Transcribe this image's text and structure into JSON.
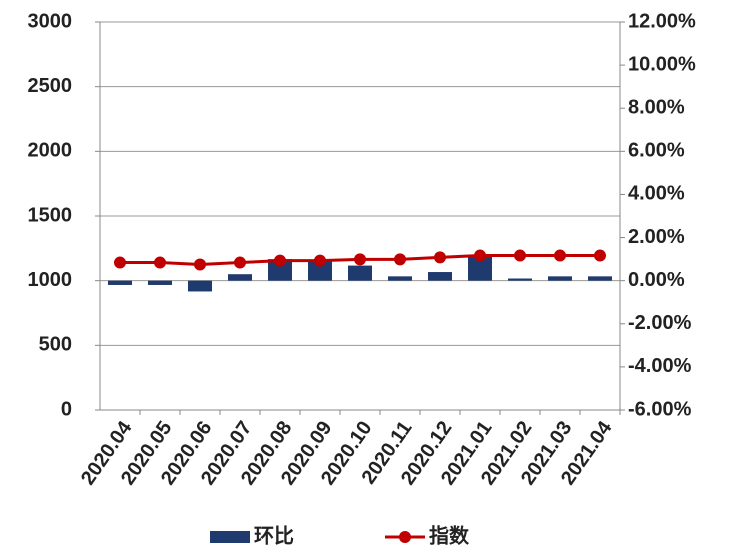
{
  "chart_data": {
    "type": "bar-line",
    "categories": [
      "2020.04",
      "2020.05",
      "2020.06",
      "2020.07",
      "2020.08",
      "2020.09",
      "2020.10",
      "2020.11",
      "2020.12",
      "2021.01",
      "2021.02",
      "2021.03",
      "2021.04"
    ],
    "series": [
      {
        "name": "环比",
        "type": "bar",
        "axis": "y2",
        "color": "#1f3a6e",
        "values": [
          -0.2,
          -0.2,
          -0.5,
          0.3,
          1.0,
          0.9,
          0.7,
          0.2,
          0.4,
          1.1,
          0.1,
          0.2,
          0.2
        ]
      },
      {
        "name": "指数",
        "type": "line",
        "axis": "y",
        "color": "#c00000",
        "values": [
          1140,
          1140,
          1125,
          1140,
          1155,
          1155,
          1165,
          1165,
          1180,
          1195,
          1195,
          1195,
          1195
        ]
      }
    ],
    "ylim": [
      0,
      3000
    ],
    "yticks": [
      0,
      500,
      1000,
      1500,
      2000,
      2500,
      3000
    ],
    "y2lim": [
      -6,
      12
    ],
    "y2ticks": [
      {
        "value": -6,
        "label": "-6.00%"
      },
      {
        "value": -4,
        "label": "-4.00%"
      },
      {
        "value": -2,
        "label": "-2.00%"
      },
      {
        "value": 0,
        "label": "0.00%"
      },
      {
        "value": 2,
        "label": "2.00%"
      },
      {
        "value": 4,
        "label": "4.00%"
      },
      {
        "value": 6,
        "label": "6.00%"
      },
      {
        "value": 8,
        "label": "8.00%"
      },
      {
        "value": 10,
        "label": "10.00%"
      },
      {
        "value": 12,
        "label": "12.00%"
      }
    ],
    "grid": true,
    "legend": "bottom"
  }
}
